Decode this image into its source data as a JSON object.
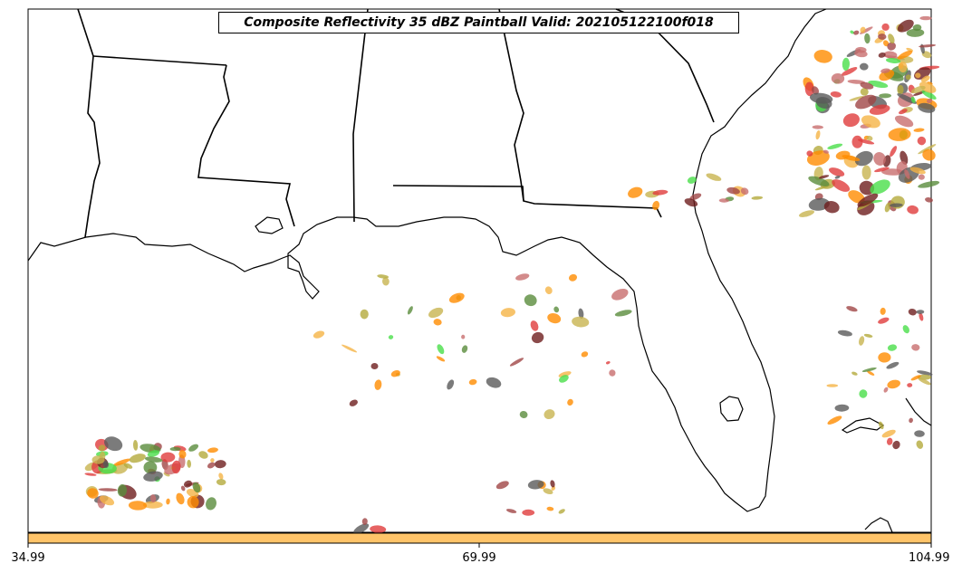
{
  "title": "Composite Reflectivity 35 dBZ Paintball Valid: 202105122100f018",
  "colorbar": {
    "ticks": [
      "34.99",
      "69.99",
      "104.99"
    ],
    "fill_color": "#ffc469"
  },
  "colors": {
    "background": "#ffffff",
    "coastline": "#000000",
    "member_palette": [
      "#ff8c00",
      "#e03c3c",
      "#c86e6e",
      "#a04646",
      "#5a8c3c",
      "#4ade4a",
      "#b4aa3c",
      "#f5b446",
      "#5a5a5a",
      "#6e1e1e",
      "#c8b450"
    ]
  },
  "legend_note": ""
}
